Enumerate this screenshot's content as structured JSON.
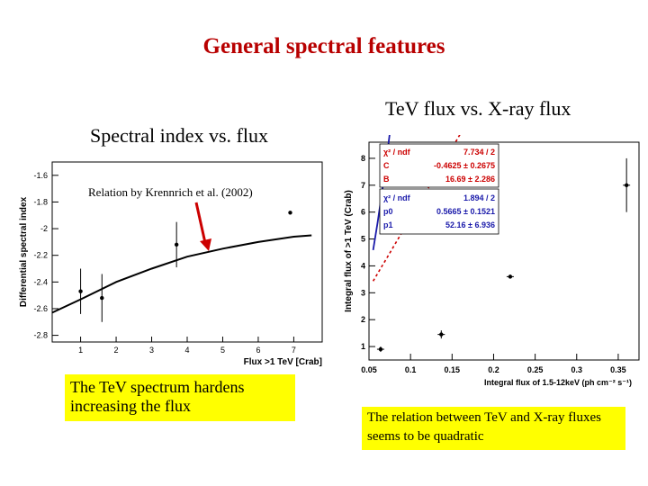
{
  "slide": {
    "title": "General spectral features",
    "left_label": "Spectral index vs. flux",
    "right_label": "TeV flux vs. X-ray flux",
    "left_note": "The TeV spectrum hardens increasing the flux",
    "right_note": "The relation between TeV and X-ray fluxes seems to be quadratic",
    "annotation": "Relation by Krennrich et al. (2002)"
  },
  "colors": {
    "title": "#b80000",
    "note_bg": "#ffff00",
    "arrow": "#cc0000",
    "fit_blue": "#1a1aaa",
    "fit_red": "#cc0000",
    "stats_red": "#cc0000",
    "stats_blue": "#1a1aaa"
  },
  "chart_data": [
    {
      "type": "scatter",
      "title": "",
      "xlabel": "Flux >1 TeV [Crab]",
      "ylabel": "Differential spectral index",
      "xlim": [
        0.2,
        7.8
      ],
      "ylim": [
        -2.85,
        -1.5
      ],
      "x_ticks": [
        1,
        2,
        3,
        4,
        5,
        6,
        7
      ],
      "y_ticks": [
        -1.6,
        -1.8,
        -2,
        -2.2,
        -2.4,
        -2.6,
        -2.8
      ],
      "x_tick_labels": [
        "1",
        "2",
        "3",
        "4",
        "5",
        "6",
        "7"
      ],
      "y_tick_labels": [
        "-1.6",
        "-1.8",
        "-2",
        "-2.2",
        "-2.4",
        "-2.6",
        "-2.8"
      ],
      "points": [
        {
          "x": 1.0,
          "y": -2.47,
          "err": 0.17
        },
        {
          "x": 1.6,
          "y": -2.52,
          "err": 0.18
        },
        {
          "x": 3.7,
          "y": -2.12,
          "err": 0.17
        },
        {
          "x": 6.9,
          "y": -1.88,
          "err": 0.0
        }
      ],
      "fit_curve": {
        "x": [
          0.2,
          1.0,
          2.0,
          3.0,
          4.0,
          5.0,
          6.0,
          7.0,
          7.5
        ],
        "y": [
          -2.63,
          -2.53,
          -2.4,
          -2.3,
          -2.21,
          -2.15,
          -2.1,
          -2.06,
          -2.05
        ]
      }
    },
    {
      "type": "scatter",
      "title": "",
      "xlabel": "Integral flux of 1.5-12keV (ph cm⁻² s⁻¹)",
      "ylabel": "Integral flux of >1 TeV (Crab)",
      "xlim": [
        0.05,
        0.375
      ],
      "ylim": [
        0.5,
        8.6
      ],
      "x_ticks": [
        0.05,
        0.1,
        0.15,
        0.2,
        0.25,
        0.3,
        0.35
      ],
      "y_ticks": [
        1,
        2,
        3,
        4,
        5,
        6,
        7,
        8
      ],
      "x_tick_labels": [
        "0.05",
        "0.1",
        "0.15",
        "0.2",
        "0.25",
        "0.3",
        "0.35"
      ],
      "y_tick_labels": [
        "1",
        "2",
        "3",
        "4",
        "5",
        "6",
        "7",
        "8"
      ],
      "points": [
        {
          "x": 0.064,
          "y": 0.9,
          "err": 0.1
        },
        {
          "x": 0.137,
          "y": 1.45,
          "err": 0.15
        },
        {
          "x": 0.22,
          "y": 3.6,
          "err": 0.0
        },
        {
          "x": 0.36,
          "y": 7.0,
          "err": 1.0
        }
      ],
      "fits": [
        {
          "name": "quadratic",
          "form": "C + B*x^2",
          "C": -0.4625,
          "B": 16.69
        },
        {
          "name": "linear",
          "form": "p0 + p1*x",
          "p0": 0.5665,
          "p1": 52.16
        }
      ],
      "stats_quadratic": [
        {
          "label": "χ² / ndf",
          "value": "7.734 / 2"
        },
        {
          "label": "C",
          "value": "-0.4625 ± 0.2675"
        },
        {
          "label": "B",
          "value": "16.69 ± 2.286"
        }
      ],
      "stats_linear": [
        {
          "label": "χ² / ndf",
          "value": "1.894 / 2"
        },
        {
          "label": "p0",
          "value": "0.5665 ± 0.1521"
        },
        {
          "label": "p1",
          "value": "52.16 ± 6.936"
        }
      ]
    }
  ]
}
